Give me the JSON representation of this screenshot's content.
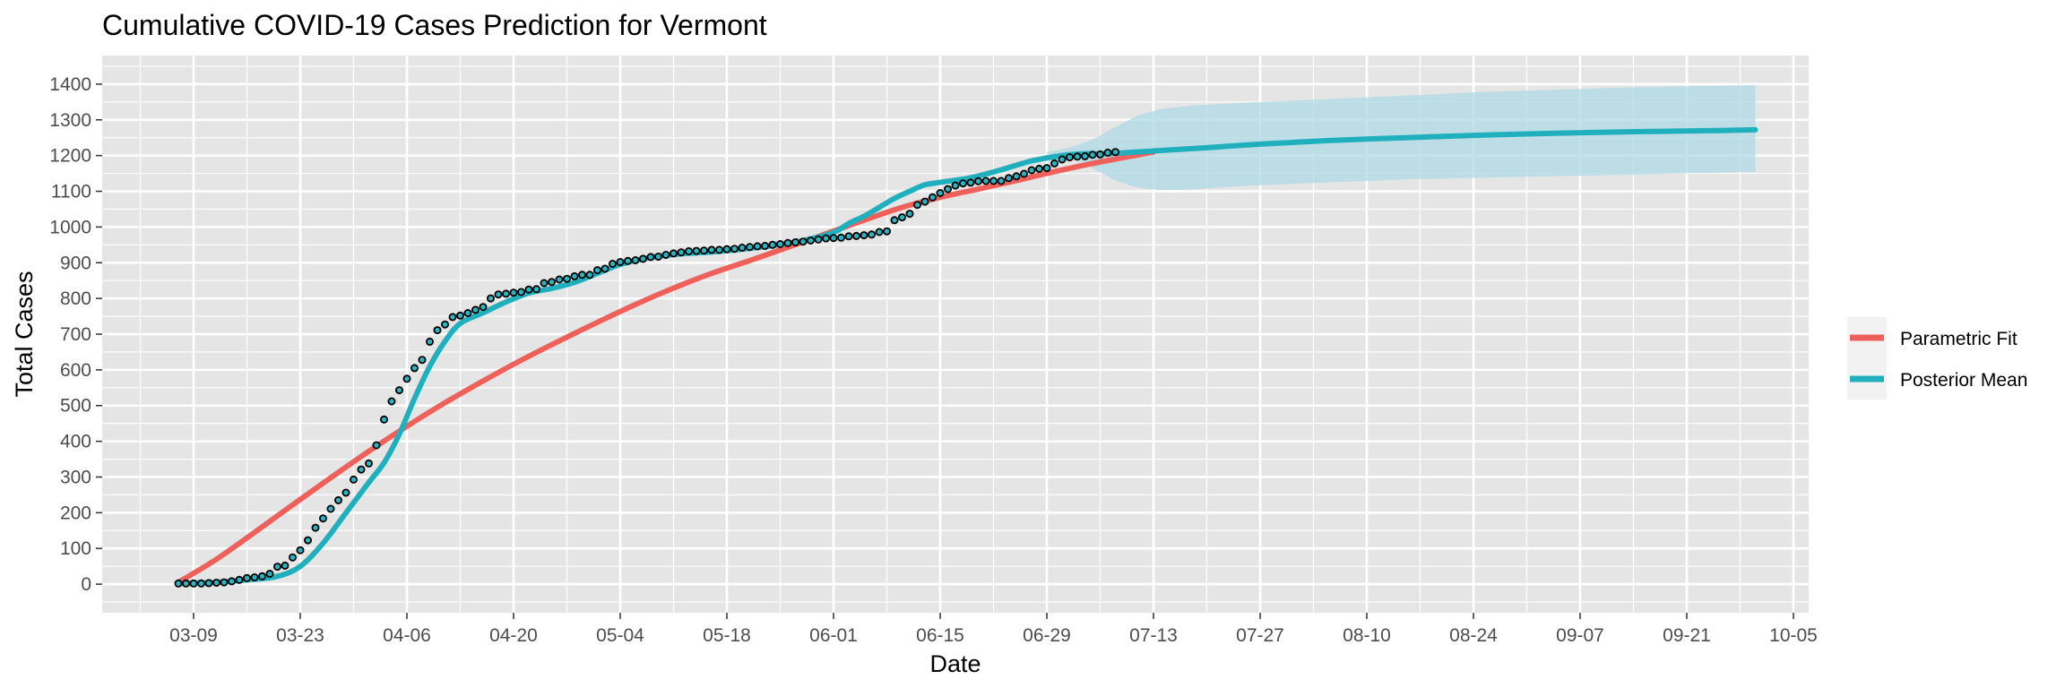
{
  "chart_data": {
    "type": "line",
    "title": "Cumulative COVID-19 Cases Prediction for Vermont",
    "xlabel": "Date",
    "ylabel": "Total Cases",
    "x_range": [
      "2020-02-26",
      "2020-10-07"
    ],
    "ylim": [
      -80,
      1480
    ],
    "x_ticks": [
      "2020-03-09",
      "2020-03-23",
      "2020-04-06",
      "2020-04-20",
      "2020-05-04",
      "2020-05-18",
      "2020-06-01",
      "2020-06-15",
      "2020-06-29",
      "2020-07-13",
      "2020-07-27",
      "2020-08-10",
      "2020-08-24",
      "2020-09-07",
      "2020-09-21",
      "2020-10-05"
    ],
    "x_tick_labels": [
      "03-09",
      "03-23",
      "04-06",
      "04-20",
      "05-04",
      "05-18",
      "06-01",
      "06-15",
      "06-29",
      "07-13",
      "07-27",
      "08-10",
      "08-24",
      "09-07",
      "09-21",
      "10-05"
    ],
    "y_ticks": [
      0,
      100,
      200,
      300,
      400,
      500,
      600,
      700,
      800,
      900,
      1000,
      1100,
      1200,
      1300,
      1400
    ],
    "y_tick_labels": [
      "0",
      "100",
      "200",
      "300",
      "400",
      "500",
      "600",
      "700",
      "800",
      "900",
      "1000",
      "1100",
      "1200",
      "1300",
      "1400"
    ],
    "grid": true,
    "legend": {
      "placement": "right",
      "entries": [
        {
          "name": "Parametric Fit",
          "color": "#f0605a"
        },
        {
          "name": "Posterior Mean",
          "color": "#20b0bd"
        }
      ]
    },
    "colors": {
      "panel_background": "#e5e5e5",
      "grid": "#ffffff",
      "band": "#add8e6",
      "points_fill": "#2bb5c2",
      "points_stroke": "#000000"
    },
    "observed": {
      "start_date": "2020-03-07",
      "values": [
        2,
        2,
        2,
        2,
        3,
        4,
        5,
        8,
        12,
        17,
        19,
        22,
        29,
        49,
        52,
        75,
        95,
        123,
        158,
        184,
        211,
        235,
        256,
        293,
        321,
        338,
        389,
        461,
        512,
        543,
        575,
        605,
        628,
        679,
        711,
        727,
        748,
        752,
        759,
        768,
        776,
        800,
        811,
        813,
        816,
        818,
        825,
        826,
        843,
        846,
        853,
        855,
        862,
        866,
        866,
        879,
        883,
        897,
        902,
        905,
        907,
        911,
        916,
        917,
        922,
        926,
        929,
        932,
        933,
        934,
        936,
        936,
        938,
        939,
        942,
        944,
        946,
        947,
        950,
        952,
        955,
        957,
        959,
        962,
        965,
        968,
        969,
        970,
        974,
        975,
        977,
        979,
        986,
        988,
        1019,
        1027,
        1037,
        1062,
        1071,
        1083,
        1095,
        1106,
        1116,
        1122,
        1124,
        1128,
        1129,
        1129,
        1129,
        1137,
        1142,
        1149,
        1159,
        1163,
        1165,
        1178,
        1189,
        1195,
        1197,
        1198,
        1202,
        1203,
        1208,
        1210
      ]
    },
    "series": [
      {
        "name": "Parametric Fit",
        "x": [
          "2020-03-07",
          "2020-03-12",
          "2020-03-17",
          "2020-03-22",
          "2020-03-27",
          "2020-04-01",
          "2020-04-06",
          "2020-04-11",
          "2020-04-16",
          "2020-04-21",
          "2020-04-26",
          "2020-05-01",
          "2020-05-06",
          "2020-05-11",
          "2020-05-16",
          "2020-05-21",
          "2020-05-26",
          "2020-05-31",
          "2020-06-05",
          "2020-06-10",
          "2020-06-15",
          "2020-06-20",
          "2020-06-25",
          "2020-06-30",
          "2020-07-05",
          "2020-07-10",
          "2020-07-13"
        ],
        "y": [
          5,
          70,
          145,
          222,
          298,
          372,
          442,
          508,
          569,
          627,
          681,
          733,
          783,
          829,
          870,
          906,
          943,
          981,
          1019,
          1055,
          1083,
          1106,
          1130,
          1155,
          1178,
          1198,
          1210
        ]
      },
      {
        "name": "Posterior Mean",
        "x": [
          "2020-03-07",
          "2020-03-12",
          "2020-03-16",
          "2020-03-20",
          "2020-03-23",
          "2020-03-26",
          "2020-03-29",
          "2020-04-01",
          "2020-04-03",
          "2020-04-05",
          "2020-04-07",
          "2020-04-09",
          "2020-04-11",
          "2020-04-13",
          "2020-04-16",
          "2020-04-19",
          "2020-04-22",
          "2020-04-25",
          "2020-04-28",
          "2020-05-01",
          "2020-05-04",
          "2020-05-08",
          "2020-05-12",
          "2020-05-16",
          "2020-05-20",
          "2020-05-24",
          "2020-05-28",
          "2020-06-01",
          "2020-06-03",
          "2020-06-05",
          "2020-06-07",
          "2020-06-09",
          "2020-06-11",
          "2020-06-13",
          "2020-06-15",
          "2020-06-19",
          "2020-06-23",
          "2020-06-27",
          "2020-07-01",
          "2020-07-04",
          "2020-07-07",
          "2020-07-13",
          "2020-07-20",
          "2020-07-27",
          "2020-08-05",
          "2020-08-15",
          "2020-08-25",
          "2020-09-05",
          "2020-09-15",
          "2020-09-25",
          "2020-09-30"
        ],
        "y": [
          2,
          5,
          12,
          22,
          50,
          115,
          200,
          285,
          340,
          420,
          520,
          610,
          680,
          730,
          760,
          790,
          815,
          828,
          845,
          870,
          895,
          915,
          925,
          930,
          938,
          948,
          962,
          985,
          1010,
          1030,
          1055,
          1080,
          1100,
          1118,
          1125,
          1138,
          1160,
          1185,
          1200,
          1205,
          1205,
          1213,
          1222,
          1232,
          1242,
          1250,
          1257,
          1263,
          1267,
          1270,
          1272
        ]
      }
    ],
    "band": {
      "name": "Posterior interval",
      "x": [
        "2020-06-29",
        "2020-07-02",
        "2020-07-05",
        "2020-07-08",
        "2020-07-11",
        "2020-07-14",
        "2020-07-18",
        "2020-07-25",
        "2020-08-05",
        "2020-08-15",
        "2020-08-25",
        "2020-09-05",
        "2020-09-15",
        "2020-09-30"
      ],
      "lower": [
        1205,
        1195,
        1165,
        1130,
        1110,
        1103,
        1105,
        1115,
        1125,
        1133,
        1138,
        1143,
        1147,
        1155
      ],
      "upper": [
        1210,
        1222,
        1245,
        1280,
        1313,
        1330,
        1340,
        1348,
        1358,
        1368,
        1378,
        1385,
        1392,
        1397
      ]
    }
  }
}
